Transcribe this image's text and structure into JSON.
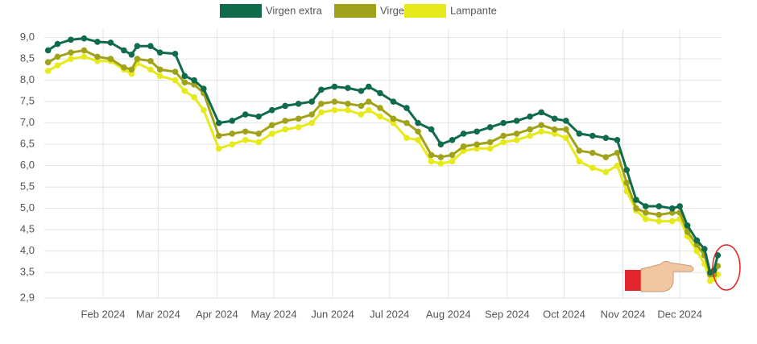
{
  "chart_data": {
    "type": "line",
    "x": [
      3,
      8,
      15,
      22,
      29,
      36,
      43,
      47,
      50,
      57,
      62,
      70,
      75,
      80,
      85,
      93,
      100,
      107,
      114,
      121,
      128,
      135,
      142,
      147,
      154,
      161,
      168,
      172,
      178,
      185,
      192,
      198,
      205,
      210,
      216,
      222,
      229,
      236,
      243,
      250,
      257,
      263,
      270,
      276,
      283,
      290,
      297,
      303,
      308,
      313,
      318,
      325,
      332,
      336,
      340,
      345,
      349,
      352,
      354,
      356
    ],
    "series": [
      {
        "name": "Virgen extra",
        "color": "#0f6b4a",
        "values": [
          8.7,
          8.85,
          8.95,
          8.98,
          8.9,
          8.88,
          8.7,
          8.6,
          8.8,
          8.8,
          8.65,
          8.62,
          8.1,
          8.0,
          7.8,
          7.0,
          7.05,
          7.2,
          7.15,
          7.3,
          7.4,
          7.45,
          7.5,
          7.78,
          7.85,
          7.82,
          7.75,
          7.85,
          7.7,
          7.5,
          7.35,
          7.0,
          6.85,
          6.5,
          6.6,
          6.75,
          6.8,
          6.9,
          7.0,
          7.05,
          7.15,
          7.25,
          7.1,
          7.05,
          6.75,
          6.7,
          6.65,
          6.6,
          5.9,
          5.2,
          5.05,
          5.05,
          5.0,
          5.05,
          4.6,
          4.25,
          4.05,
          3.5,
          3.55,
          3.9
        ]
      },
      {
        "name": "Virgen",
        "color": "#a0a21a",
        "values": [
          8.42,
          8.55,
          8.65,
          8.7,
          8.55,
          8.5,
          8.3,
          8.25,
          8.5,
          8.45,
          8.25,
          8.2,
          7.95,
          7.9,
          7.7,
          6.7,
          6.75,
          6.8,
          6.75,
          6.95,
          7.05,
          7.1,
          7.2,
          7.45,
          7.5,
          7.45,
          7.4,
          7.5,
          7.35,
          7.1,
          7.0,
          6.8,
          6.25,
          6.2,
          6.25,
          6.45,
          6.5,
          6.55,
          6.7,
          6.75,
          6.85,
          6.95,
          6.85,
          6.85,
          6.35,
          6.3,
          6.2,
          6.3,
          5.6,
          5.0,
          4.9,
          4.85,
          4.9,
          4.9,
          4.45,
          4.15,
          3.9,
          3.45,
          3.45,
          3.65
        ]
      },
      {
        "name": "Lampante",
        "color": "#e6ea1a",
        "values": [
          8.22,
          8.35,
          8.5,
          8.55,
          8.45,
          8.45,
          8.25,
          8.15,
          8.4,
          8.25,
          8.1,
          8.0,
          7.75,
          7.6,
          7.3,
          6.4,
          6.5,
          6.6,
          6.55,
          6.75,
          6.85,
          6.9,
          7.0,
          7.25,
          7.3,
          7.3,
          7.2,
          7.3,
          7.15,
          7.0,
          6.65,
          6.6,
          6.1,
          6.05,
          6.1,
          6.35,
          6.4,
          6.4,
          6.55,
          6.6,
          6.7,
          6.8,
          6.75,
          6.65,
          6.1,
          5.95,
          5.85,
          6.0,
          5.4,
          4.95,
          4.75,
          4.7,
          4.7,
          4.75,
          4.35,
          4.0,
          3.7,
          3.3,
          3.35,
          3.45
        ]
      }
    ],
    "xlim": [
      1,
      358
    ],
    "xticks": [
      {
        "value": 32,
        "label": "Feb 2024"
      },
      {
        "value": 61,
        "label": "Mar 2024"
      },
      {
        "value": 92,
        "label": "Apr 2024"
      },
      {
        "value": 122,
        "label": "May 2024"
      },
      {
        "value": 153,
        "label": "Jun 2024"
      },
      {
        "value": 183,
        "label": "Jul 2024"
      },
      {
        "value": 214,
        "label": "Aug 2024"
      },
      {
        "value": 245,
        "label": "Sep 2024"
      },
      {
        "value": 275,
        "label": "Oct 2024"
      },
      {
        "value": 306,
        "label": "Nov 2024"
      },
      {
        "value": 336,
        "label": "Dec 2024"
      }
    ],
    "ylim": [
      2.9,
      9.2
    ],
    "yticks": [
      {
        "value": 2.9,
        "label": "2,9"
      },
      {
        "value": 3.5,
        "label": "3,5"
      },
      {
        "value": 4.0,
        "label": "4,0"
      },
      {
        "value": 4.5,
        "label": "4,5"
      },
      {
        "value": 5.0,
        "label": "5,0"
      },
      {
        "value": 5.5,
        "label": "5,5"
      },
      {
        "value": 6.0,
        "label": "6,0"
      },
      {
        "value": 6.5,
        "label": "6,5"
      },
      {
        "value": 7.0,
        "label": "7,0"
      },
      {
        "value": 7.5,
        "label": "7,5"
      },
      {
        "value": 8.0,
        "label": "8,0"
      },
      {
        "value": 8.5,
        "label": "8,5"
      },
      {
        "value": 9.0,
        "label": "9,0"
      }
    ],
    "grid": true,
    "legend": "top"
  }
}
